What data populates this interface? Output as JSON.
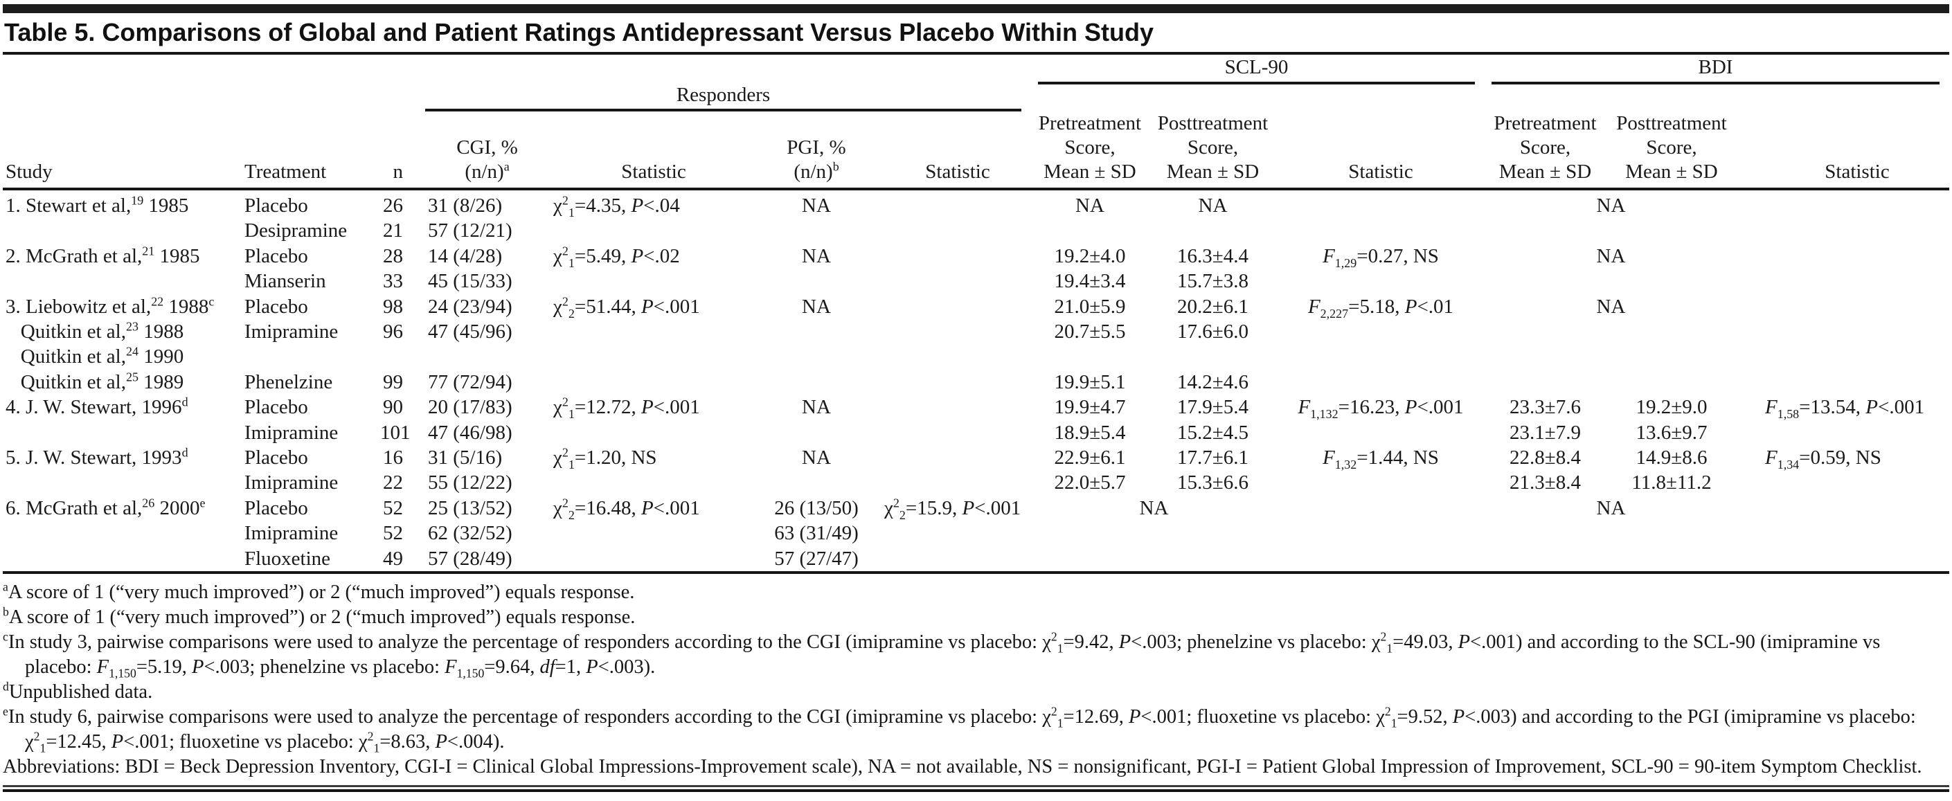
{
  "title": "Table 5. Comparisons of Global and Patient Ratings Antidepressant Versus Placebo Within Study",
  "table": {
    "spanners": {
      "responders": "Responders",
      "scl90": "SCL-90",
      "bdi": "BDI"
    },
    "columns": [
      "Study",
      "Treatment",
      "n",
      "CGI, %\n(n/n)^{a}",
      "Statistic",
      "PGI, %\n(n/n)^{b}",
      "Statistic",
      "Pretreatment\nScore,\nMean ± SD",
      "Posttreatment\nScore,\nMean ± SD",
      "Statistic",
      "Pretreatment\nScore,\nMean ± SD",
      "Posttreatment\nScore,\nMean ± SD",
      "Statistic"
    ],
    "rows": [
      [
        "1. Stewart et al,^{19} 1985",
        "Placebo",
        "26",
        "31 (8/26)",
        "χ^{2}_{1}=4.35, *P*<.04",
        "NA",
        "",
        "NA",
        "NA",
        "",
        {
          "t": "NA",
          "s": 2
        },
        ""
      ],
      [
        "",
        "Desipramine",
        "21",
        "57 (12/21)",
        "",
        "",
        "",
        "",
        "",
        "",
        "",
        "",
        ""
      ],
      [
        "2. McGrath et al,^{21} 1985",
        "Placebo",
        "28",
        "14 (4/28)",
        "χ^{2}_{1}=5.49, *P*<.02",
        "NA",
        "",
        "19.2±4.0",
        "16.3±4.4",
        "*F*_{1,29}=0.27, NS",
        {
          "t": "NA",
          "s": 2
        },
        ""
      ],
      [
        "",
        "Mianserin",
        "33",
        "45 (15/33)",
        "",
        "",
        "",
        "19.4±3.4",
        "15.7±3.8",
        "",
        "",
        "",
        ""
      ],
      [
        "3. Liebowitz et al,^{22} 1988^{c}",
        "Placebo",
        "98",
        "24 (23/94)",
        "χ^{2}_{2}=51.44, *P*<.001",
        "NA",
        "",
        "21.0±5.9",
        "20.2±6.1",
        "*F*_{2,227}=5.18, *P*<.01",
        {
          "t": "NA",
          "s": 2
        },
        ""
      ],
      [
        "   Quitkin et al,^{23} 1988",
        "Imipramine",
        "96",
        "47 (45/96)",
        "",
        "",
        "",
        "20.7±5.5",
        "17.6±6.0",
        "",
        "",
        "",
        ""
      ],
      [
        "   Quitkin et al,^{24} 1990",
        "",
        "",
        "",
        "",
        "",
        "",
        "",
        "",
        "",
        "",
        "",
        ""
      ],
      [
        "   Quitkin et al,^{25} 1989",
        "Phenelzine",
        "99",
        "77 (72/94)",
        "",
        "",
        "",
        "19.9±5.1",
        "14.2±4.6",
        "",
        "",
        "",
        ""
      ],
      [
        "4. J. W. Stewart, 1996^{d}",
        "Placebo",
        "90",
        "20 (17/83)",
        "χ^{2}_{1}=12.72, *P*<.001",
        "NA",
        "",
        "19.9±4.7",
        "17.9±5.4",
        "*F*_{1,132}=16.23, *P*<.001",
        "23.3±7.6",
        "19.2±9.0",
        "*F*_{1,58}=13.54, *P*<.001"
      ],
      [
        "",
        "Imipramine",
        "101",
        "47 (46/98)",
        "",
        "",
        "",
        "18.9±5.4",
        "15.2±4.5",
        "",
        "23.1±7.9",
        "13.6±9.7",
        ""
      ],
      [
        "5. J. W. Stewart, 1993^{d}",
        "Placebo",
        "16",
        "31 (5/16)",
        "χ^{2}_{1}=1.20, NS",
        "NA",
        "",
        "22.9±6.1",
        "17.7±6.1",
        "*F*_{1,32}=1.44, NS",
        "22.8±8.4",
        "14.9±8.6",
        "*F*_{1,34}=0.59, NS"
      ],
      [
        "",
        "Imipramine",
        "22",
        "55 (12/22)",
        "",
        "",
        "",
        "22.0±5.7",
        "15.3±6.6",
        "",
        "21.3±8.4",
        "11.8±11.2",
        ""
      ],
      [
        "6. McGrath et al,^{26} 2000^{e}",
        "Placebo",
        "52",
        "25 (13/52)",
        "χ^{2}_{2}=16.48, *P*<.001",
        "26 (13/50)",
        "χ^{2}_{2}=15.9, *P*<.001",
        {
          "t": "NA",
          "s": 2
        },
        "",
        {
          "t": "NA",
          "s": 2
        },
        ""
      ],
      [
        "",
        "Imipramine",
        "52",
        "62 (32/52)",
        "",
        "63 (31/49)",
        "",
        "",
        "",
        "",
        "",
        "",
        ""
      ],
      [
        "",
        "Fluoxetine",
        "49",
        "57 (28/49)",
        "",
        "57 (27/47)",
        "",
        "",
        "",
        "",
        "",
        "",
        ""
      ]
    ]
  },
  "footnotes": [
    "^{a}A score of 1 (“very much improved”) or 2 (“much improved”) equals response.",
    "^{b}A score of 1 (“very much improved”) or 2 (“much improved”) equals response.",
    "^{c}In study 3, pairwise comparisons were used to analyze the percentage of responders according to the CGI (imipramine vs placebo: χ^{2}_{1}=9.42, *P*<.003; phenelzine vs placebo: χ^{2}_{1}=49.03, *P*<.001) and according to the SCL-90 (imipramine vs placebo: *F*_{1,150}=5.19, *P*<.003; phenelzine vs placebo: *F*_{1,150}=9.64, *df*=1, *P*<.003).",
    "^{d}Unpublished data.",
    "^{e}In study 6, pairwise comparisons were used to analyze the percentage of responders according to the CGI (imipramine vs placebo: χ^{2}_{1}=12.69, *P*<.001; fluoxetine vs placebo: χ^{2}_{1}=9.52, *P*<.003) and according to the PGI (imipramine vs placebo: χ^{2}_{1}=12.45, *P*<.001; fluoxetine vs placebo: χ^{2}_{1}=8.63, *P*<.004).",
    "Abbreviations: BDI = Beck Depression Inventory, CGI-I = Clinical Global Impressions-Improvement scale), NA = not available, NS = nonsignificant, PGI-I = Patient Global Impression of Improvement, SCL-90 = 90-item Symptom Checklist."
  ]
}
